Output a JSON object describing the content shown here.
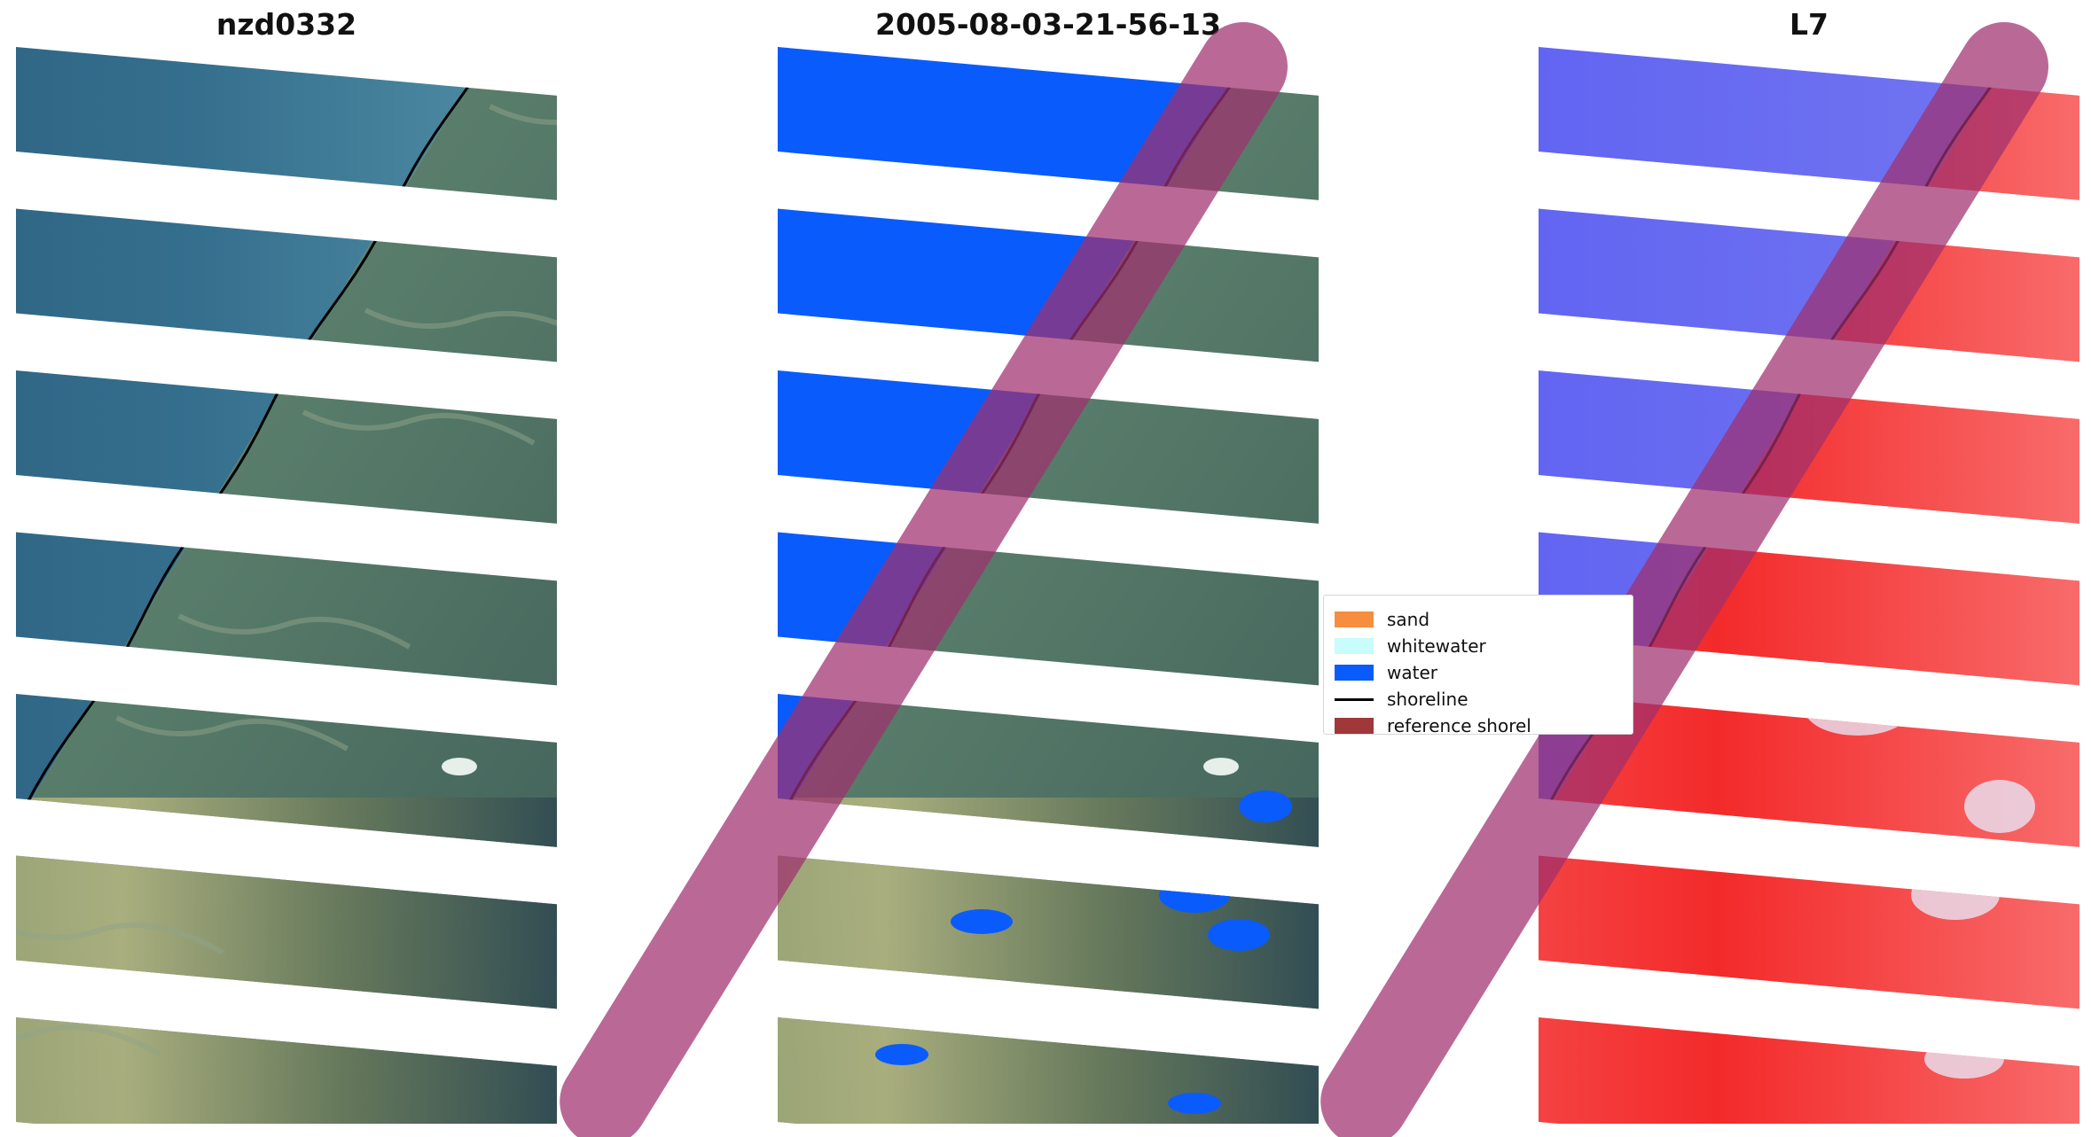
{
  "chart_data": {
    "type": "image-panels",
    "panels": [
      {
        "title": "nzd0332",
        "kind": "rgb"
      },
      {
        "title": "2005-08-03-21-56-13",
        "kind": "classified"
      },
      {
        "title": "L7",
        "kind": "mndwi"
      }
    ],
    "legend": {
      "placement": "center",
      "items": [
        {
          "label": "sand",
          "kind": "patch",
          "color": "#f68d3f"
        },
        {
          "label": "whitewater",
          "kind": "patch",
          "color": "#c8fdfc"
        },
        {
          "label": "water",
          "kind": "patch",
          "color": "#0a5bfb"
        },
        {
          "label": "shoreline",
          "kind": "line",
          "color": "#000000"
        },
        {
          "label": "reference shorel",
          "kind": "patch",
          "color": "#a0383a"
        }
      ]
    },
    "colors": {
      "sea": "#2f6a88",
      "land": "#5d8072",
      "water_class": "#0a5bfb",
      "buffer": "#a0306e",
      "mndwi_water": "#5a5ef0",
      "mndwi_land": "#f33a3a"
    },
    "grid": false,
    "axes": "off"
  }
}
